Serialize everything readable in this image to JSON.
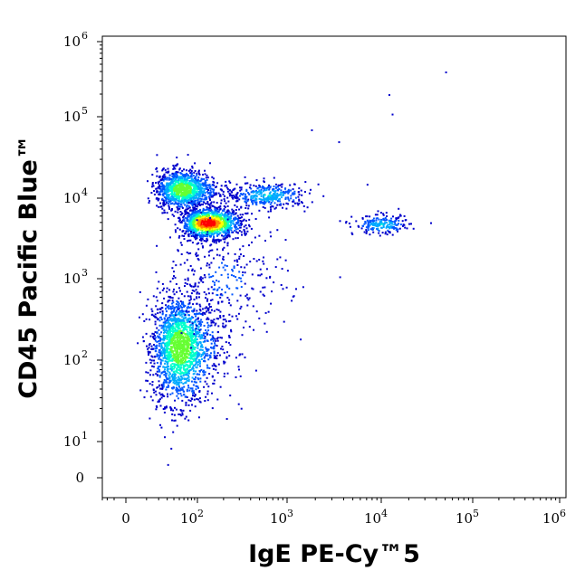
{
  "chart_data": {
    "type": "scatter",
    "style": "density-colored flow cytometry dot plot",
    "xlabel": "IgE PE-Cy™5",
    "ylabel": "CD45 Pacific Blue™",
    "x_scale": "biexponential (log with linear region near 0)",
    "y_scale": "biexponential (log with linear region near 0)",
    "xlim": [
      -30,
      1000000
    ],
    "ylim": [
      -20,
      1000000
    ],
    "x_ticks": [
      {
        "value": 0,
        "base": "0",
        "exp": ""
      },
      {
        "value": 100,
        "base": "10",
        "exp": "2"
      },
      {
        "value": 1000,
        "base": "10",
        "exp": "3"
      },
      {
        "value": 10000,
        "base": "10",
        "exp": "4"
      },
      {
        "value": 100000,
        "base": "10",
        "exp": "5"
      },
      {
        "value": 1000000,
        "base": "10",
        "exp": "6"
      }
    ],
    "y_ticks": [
      {
        "value": 0,
        "base": "0",
        "exp": ""
      },
      {
        "value": 10,
        "base": "10",
        "exp": "1"
      },
      {
        "value": 100,
        "base": "10",
        "exp": "2"
      },
      {
        "value": 1000,
        "base": "10",
        "exp": "3"
      },
      {
        "value": 10000,
        "base": "10",
        "exp": "4"
      },
      {
        "value": 100000,
        "base": "10",
        "exp": "5"
      },
      {
        "value": 1000000,
        "base": "10",
        "exp": "6"
      }
    ],
    "populations": [
      {
        "center_x": 50,
        "center_y": 150,
        "spread_x": 0.28,
        "spread_y": 0.32,
        "weight": 0.36,
        "peak_density": "medium"
      },
      {
        "center_x": 55,
        "center_y": 13000,
        "spread_x": 0.25,
        "spread_y": 0.12,
        "weight": 0.22,
        "peak_density": "medium"
      },
      {
        "center_x": 130,
        "center_y": 5000,
        "spread_x": 0.18,
        "spread_y": 0.09,
        "weight": 0.25,
        "peak_density": "high"
      },
      {
        "center_x": 600,
        "center_y": 11000,
        "spread_x": 0.22,
        "spread_y": 0.08,
        "weight": 0.07,
        "peak_density": "low"
      },
      {
        "center_x": 10000,
        "center_y": 4800,
        "spread_x": 0.15,
        "spread_y": 0.06,
        "weight": 0.04,
        "peak_density": "low"
      },
      {
        "center_x": 200,
        "center_y": 1000,
        "spread_x": 0.35,
        "spread_y": 0.35,
        "weight": 0.06,
        "peak_density": "sparse"
      }
    ],
    "outliers": [
      {
        "x": 50000,
        "y": 400000
      },
      {
        "x": 12000,
        "y": 200000
      },
      {
        "x": 13000,
        "y": 110000
      },
      {
        "x": 1800,
        "y": 70000
      },
      {
        "x": 3500,
        "y": 50000
      },
      {
        "x": 7000,
        "y": 15000
      },
      {
        "x": 450,
        "y": 80
      },
      {
        "x": 30,
        "y": 3
      }
    ],
    "colormap": [
      "#0000cc",
      "#0055ff",
      "#00aaff",
      "#00ffcc",
      "#66ff33",
      "#ffff00",
      "#ff8800",
      "#ff0000"
    ],
    "grid": false,
    "legend": "none"
  }
}
